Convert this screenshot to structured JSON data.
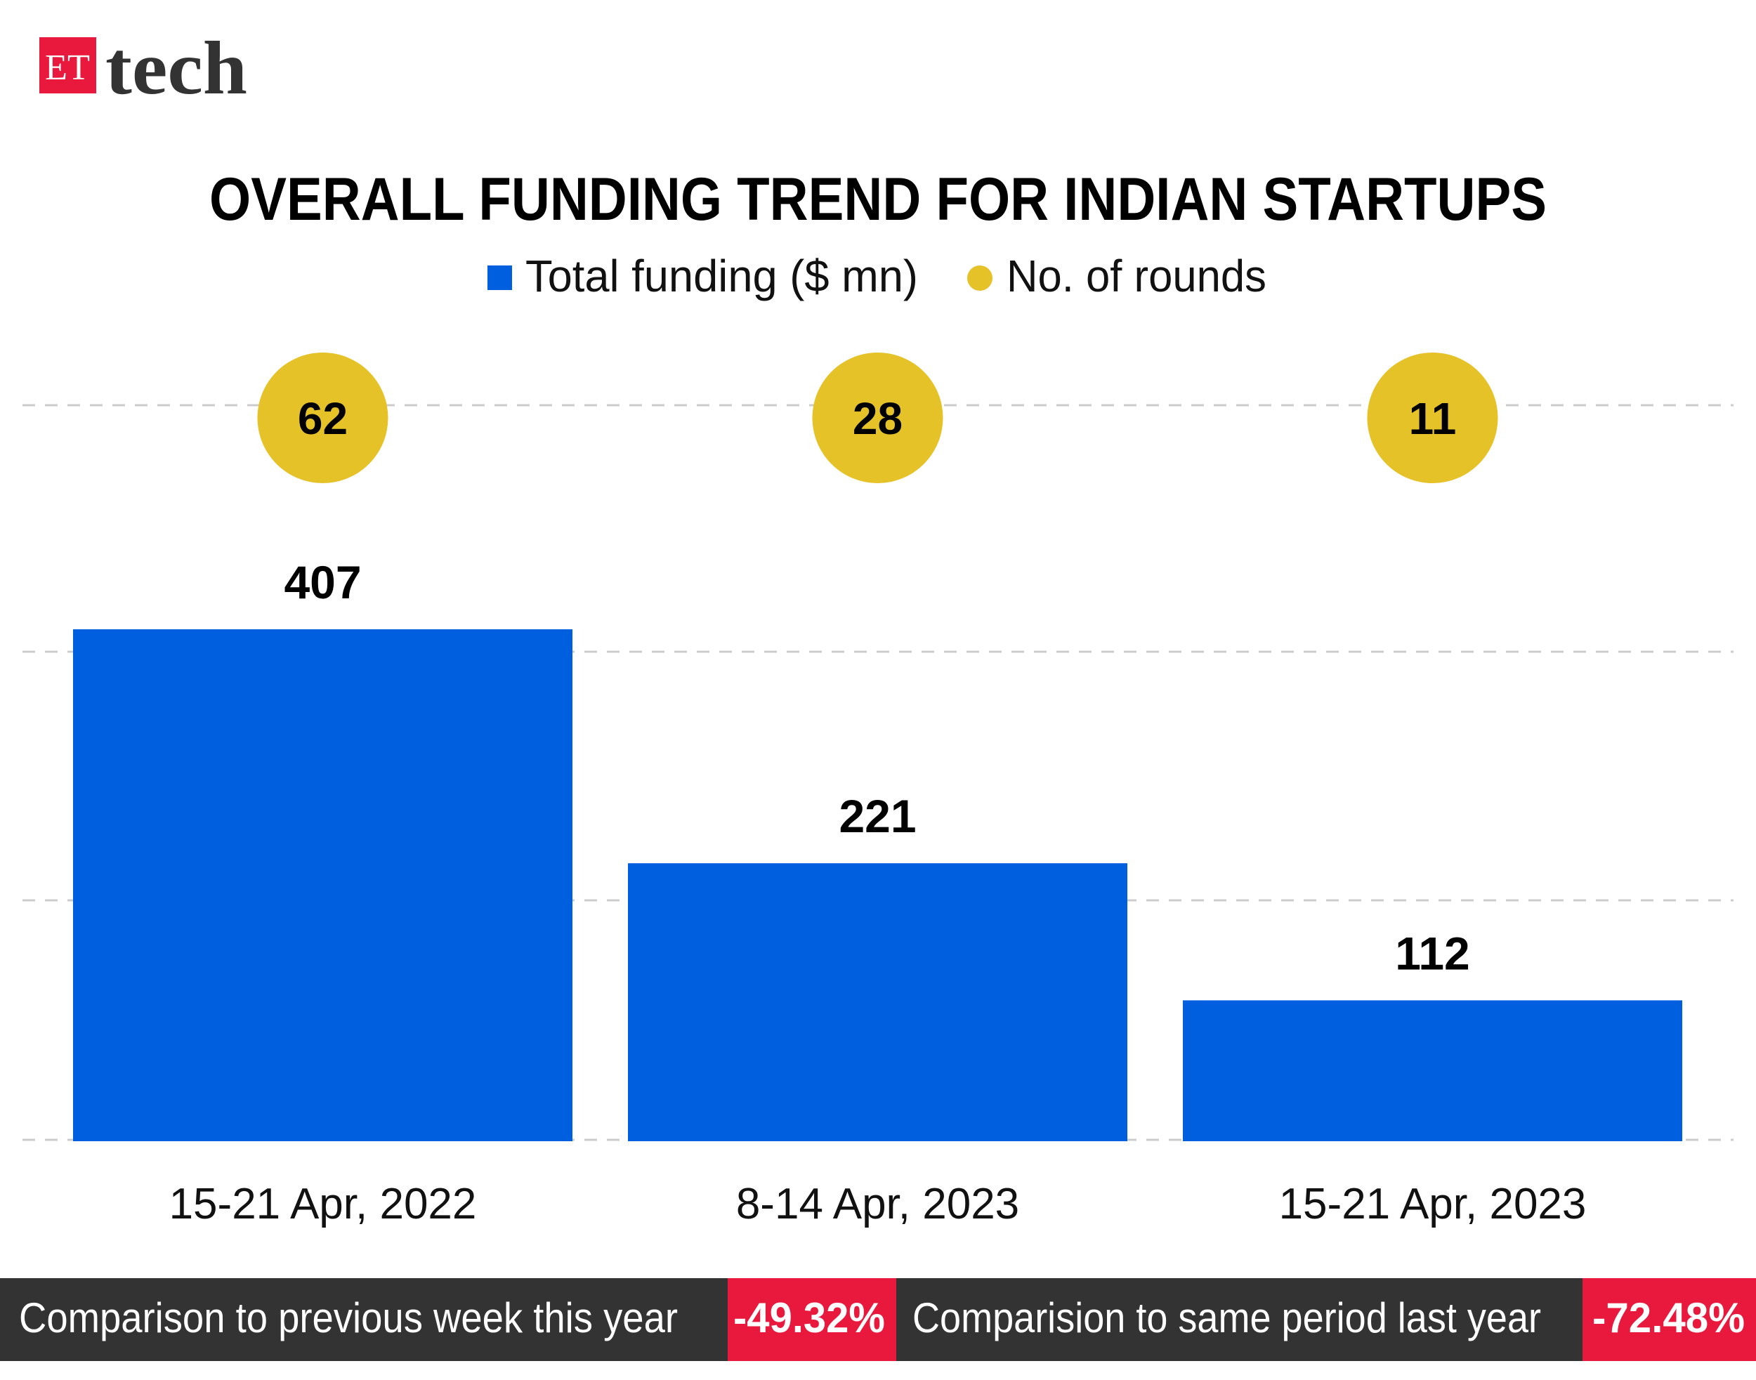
{
  "brand": {
    "logo_box": "ET",
    "logo_word": "tech"
  },
  "colors": {
    "bar": "#005fdf",
    "rounds": "#e6c229",
    "accent_red": "#e8193c",
    "footer_bg": "#333333",
    "grid": "#cccccc"
  },
  "chart_data": {
    "type": "bar",
    "title": "OVERALL FUNDING TREND FOR INDIAN STARTUPS",
    "legend": [
      {
        "name": "Total funding ($ mn)",
        "marker": "square",
        "color": "#005fdf"
      },
      {
        "name": "No. of rounds",
        "marker": "circle",
        "color": "#e6c229"
      }
    ],
    "legend_placement": "top-center",
    "categories": [
      "15-21 Apr, 2022",
      "8-14 Apr, 2023",
      "15-21 Apr, 2023"
    ],
    "series": [
      {
        "name": "Total funding ($ mn)",
        "values": [
          407,
          221,
          112
        ]
      },
      {
        "name": "No. of rounds",
        "values": [
          62,
          28,
          11
        ]
      }
    ],
    "ylim": [
      0,
      480
    ],
    "grid": true
  },
  "footer": {
    "items": [
      {
        "label": "Comparison to previous week this year",
        "value": "-49.32%"
      },
      {
        "label": "Comparision to same period last year",
        "value": "-72.48%"
      }
    ]
  }
}
